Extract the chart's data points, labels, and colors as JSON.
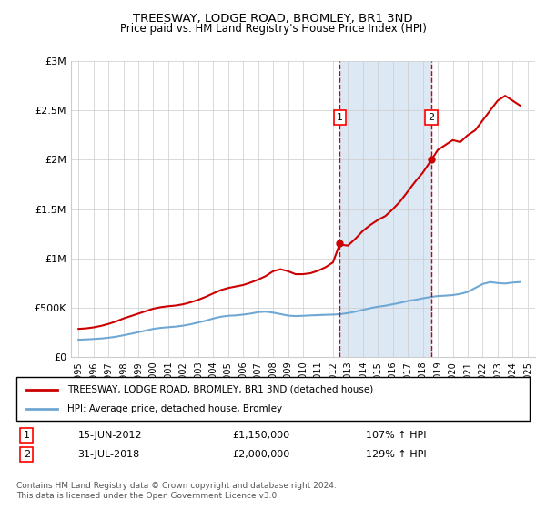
{
  "title": "TREESWAY, LODGE ROAD, BROMLEY, BR1 3ND",
  "subtitle": "Price paid vs. HM Land Registry's House Price Index (HPI)",
  "background_color": "#ffffff",
  "plot_bg_color": "#ffffff",
  "shaded_region_color": "#dce9f5",
  "grid_color": "#cccccc",
  "hpi_line_color": "#6fa8d4",
  "price_line_color": "#cc0000",
  "ylim": [
    0,
    3000000
  ],
  "yticks": [
    0,
    500000,
    1000000,
    1500000,
    2000000,
    2500000,
    3000000
  ],
  "ytick_labels": [
    "£0",
    "£500K",
    "£1M",
    "£1.5M",
    "£2M",
    "£2.5M",
    "£3M"
  ],
  "xlim_start": 1995,
  "xlim_end": 2025.5,
  "xticks": [
    1995,
    1996,
    1997,
    1998,
    1999,
    2000,
    2001,
    2002,
    2003,
    2004,
    2005,
    2006,
    2007,
    2008,
    2009,
    2010,
    2011,
    2012,
    2013,
    2014,
    2015,
    2016,
    2017,
    2018,
    2019,
    2020,
    2021,
    2022,
    2023,
    2024,
    2025
  ],
  "sale1_x": 2012.46,
  "sale1_y": 1150000,
  "sale1_label": "1",
  "sale1_date": "15-JUN-2012",
  "sale1_price": "£1,150,000",
  "sale1_hpi": "107% ↑ HPI",
  "sale2_x": 2018.58,
  "sale2_y": 2000000,
  "sale2_label": "2",
  "sale2_date": "31-JUL-2018",
  "sale2_price": "£2,000,000",
  "sale2_hpi": "129% ↑ HPI",
  "legend_line1": "TREESWAY, LODGE ROAD, BROMLEY, BR1 3ND (detached house)",
  "legend_line2": "HPI: Average price, detached house, Bromley",
  "footnote": "Contains HM Land Registry data © Crown copyright and database right 2024.\nThis data is licensed under the Open Government Licence v3.0.",
  "hpi_data_x": [
    1995,
    1995.5,
    1996,
    1996.5,
    1997,
    1997.5,
    1998,
    1998.5,
    1999,
    1999.5,
    2000,
    2000.5,
    2001,
    2001.5,
    2002,
    2002.5,
    2003,
    2003.5,
    2004,
    2004.5,
    2005,
    2005.5,
    2006,
    2006.5,
    2007,
    2007.5,
    2008,
    2008.5,
    2009,
    2009.5,
    2010,
    2010.5,
    2011,
    2011.5,
    2012,
    2012.5,
    2013,
    2013.5,
    2014,
    2014.5,
    2015,
    2015.5,
    2016,
    2016.5,
    2017,
    2017.5,
    2018,
    2018.5,
    2019,
    2019.5,
    2020,
    2020.5,
    2021,
    2021.5,
    2022,
    2022.5,
    2023,
    2023.5,
    2024,
    2024.5
  ],
  "hpi_data_y": [
    175000,
    178000,
    182000,
    187000,
    195000,
    205000,
    220000,
    235000,
    252000,
    268000,
    285000,
    295000,
    302000,
    308000,
    318000,
    332000,
    350000,
    368000,
    390000,
    408000,
    418000,
    422000,
    430000,
    440000,
    455000,
    460000,
    450000,
    435000,
    420000,
    415000,
    418000,
    422000,
    425000,
    428000,
    430000,
    435000,
    445000,
    460000,
    478000,
    495000,
    510000,
    520000,
    535000,
    550000,
    568000,
    580000,
    595000,
    608000,
    618000,
    622000,
    628000,
    640000,
    660000,
    700000,
    740000,
    760000,
    750000,
    745000,
    755000,
    760000
  ],
  "price_data_x": [
    1995,
    1995.5,
    1996,
    1996.5,
    1997,
    1997.5,
    1998,
    1998.5,
    1999,
    1999.5,
    2000,
    2000.5,
    2001,
    2001.5,
    2002,
    2002.5,
    2003,
    2003.5,
    2004,
    2004.5,
    2005,
    2005.5,
    2006,
    2006.5,
    2007,
    2007.5,
    2008,
    2008.5,
    2009,
    2009.5,
    2010,
    2010.5,
    2011,
    2011.5,
    2012,
    2012.46,
    2012.5,
    2013,
    2013.5,
    2014,
    2014.5,
    2015,
    2015.5,
    2016,
    2016.5,
    2017,
    2017.5,
    2018,
    2018.58,
    2019,
    2019.5,
    2020,
    2020.5,
    2021,
    2021.5,
    2022,
    2022.5,
    2023,
    2023.5,
    2024,
    2024.5
  ],
  "price_data_y": [
    285000,
    290000,
    300000,
    315000,
    335000,
    360000,
    390000,
    415000,
    440000,
    465000,
    490000,
    505000,
    515000,
    522000,
    535000,
    555000,
    580000,
    610000,
    645000,
    678000,
    700000,
    715000,
    730000,
    755000,
    785000,
    820000,
    870000,
    890000,
    870000,
    840000,
    840000,
    850000,
    875000,
    910000,
    960000,
    1150000,
    1140000,
    1130000,
    1200000,
    1280000,
    1340000,
    1390000,
    1430000,
    1500000,
    1580000,
    1680000,
    1780000,
    1870000,
    2000000,
    2100000,
    2150000,
    2200000,
    2180000,
    2250000,
    2300000,
    2400000,
    2500000,
    2600000,
    2650000,
    2600000,
    2550000
  ]
}
